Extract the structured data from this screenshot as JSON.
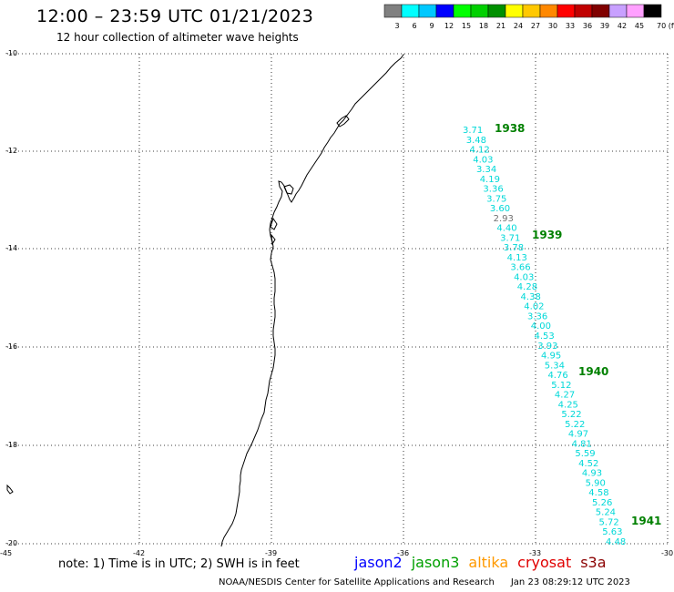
{
  "header": {
    "title": "12:00 – 23:59 UTC 01/21/2023",
    "subtitle": "12 hour collection of altimeter wave heights"
  },
  "legend": {
    "colors": [
      "#808080",
      "#00ffff",
      "#00c8ff",
      "#0000ff",
      "#00ff00",
      "#00d000",
      "#009000",
      "#ffff00",
      "#ffc800",
      "#ff8800",
      "#ff0000",
      "#c00000",
      "#800000",
      "#c8a0ff",
      "#ffa0ff",
      "#000000"
    ],
    "labels": [
      "3",
      "6",
      "9",
      "12",
      "15",
      "18",
      "21",
      "24",
      "27",
      "30",
      "33",
      "36",
      "39",
      "42",
      "45",
      "70 (ft)"
    ]
  },
  "axes": {
    "lon_ticks": [
      "-45",
      "-42",
      "-39",
      "-36",
      "-33",
      "-30"
    ],
    "lat_ticks": [
      "-10",
      "-12",
      "-14",
      "-16",
      "-18",
      "-20"
    ]
  },
  "observations": [
    {
      "v": "3.71",
      "c": "#00d8d8"
    },
    {
      "v": "3.48",
      "c": "#00d8d8"
    },
    {
      "v": "4.12",
      "c": "#00d8d8"
    },
    {
      "v": "4.03",
      "c": "#00d8d8"
    },
    {
      "v": "3.34",
      "c": "#00d8d8"
    },
    {
      "v": "4.19",
      "c": "#00d8d8"
    },
    {
      "v": "3.36",
      "c": "#00d8d8"
    },
    {
      "v": "3.75",
      "c": "#00d8d8"
    },
    {
      "v": "3.60",
      "c": "#00d8d8"
    },
    {
      "v": "2.93",
      "c": "#707070"
    },
    {
      "v": "4.40",
      "c": "#00d8d8"
    },
    {
      "v": "3.71",
      "c": "#00d8d8"
    },
    {
      "v": "3.78",
      "c": "#00d8d8"
    },
    {
      "v": "4.13",
      "c": "#00d8d8"
    },
    {
      "v": "3.66",
      "c": "#00d8d8"
    },
    {
      "v": "4.03",
      "c": "#00d8d8"
    },
    {
      "v": "4.28",
      "c": "#00d8d8"
    },
    {
      "v": "4.38",
      "c": "#00d8d8"
    },
    {
      "v": "4.02",
      "c": "#00d8d8"
    },
    {
      "v": "3.36",
      "c": "#00d8d8"
    },
    {
      "v": "4.00",
      "c": "#00d8d8"
    },
    {
      "v": "4.53",
      "c": "#00d8d8"
    },
    {
      "v": "3.93",
      "c": "#00d8d8"
    },
    {
      "v": "4.95",
      "c": "#00d8d8"
    },
    {
      "v": "5.34",
      "c": "#00d8d8"
    },
    {
      "v": "4.76",
      "c": "#00d8d8"
    },
    {
      "v": "5.12",
      "c": "#00d8d8"
    },
    {
      "v": "4.27",
      "c": "#00d8d8"
    },
    {
      "v": "4.25",
      "c": "#00d8d8"
    },
    {
      "v": "5.22",
      "c": "#00d8d8"
    },
    {
      "v": "5.22",
      "c": "#00d8d8"
    },
    {
      "v": "4.97",
      "c": "#00d8d8"
    },
    {
      "v": "4.81",
      "c": "#00d8d8"
    },
    {
      "v": "5.59",
      "c": "#00d8d8"
    },
    {
      "v": "4.52",
      "c": "#00d8d8"
    },
    {
      "v": "4.93",
      "c": "#00d8d8"
    },
    {
      "v": "5.90",
      "c": "#00d8d8"
    },
    {
      "v": "4.58",
      "c": "#00d8d8"
    },
    {
      "v": "5.26",
      "c": "#00d8d8"
    },
    {
      "v": "5.24",
      "c": "#00d8d8"
    },
    {
      "v": "5.72",
      "c": "#00d8d8"
    },
    {
      "v": "5.63",
      "c": "#00d8d8"
    },
    {
      "v": "4.48",
      "c": "#00d8d8"
    }
  ],
  "cycles": [
    "1938",
    "1939",
    "1940",
    "1941"
  ],
  "footer": {
    "note": "note: 1) Time is in UTC; 2) SWH is in feet",
    "satellites": [
      {
        "name": "jason2",
        "color": "#0000ff"
      },
      {
        "name": "jason3",
        "color": "#00a000"
      },
      {
        "name": "altika",
        "color": "#ff9900"
      },
      {
        "name": "cryosat",
        "color": "#e00000"
      },
      {
        "name": "s3a",
        "color": "#8b0000"
      }
    ],
    "credit": "NOAA/NESDIS Center for Satellite Applications and Research",
    "timestamp": "Jan 23 08:29:12 UTC 2023"
  }
}
